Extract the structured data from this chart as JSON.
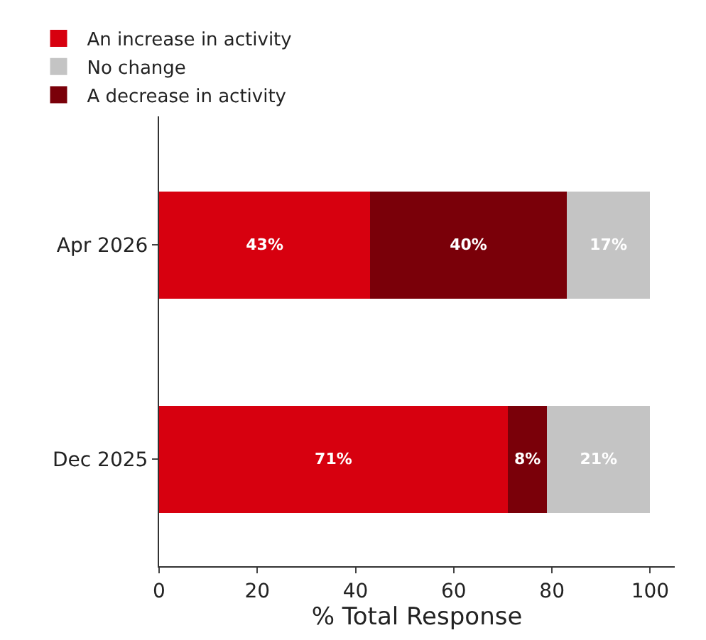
{
  "chart_data": {
    "type": "bar",
    "orientation": "horizontal",
    "stacked": true,
    "xlabel": "% Total Response",
    "categories": [
      "Apr 2026",
      "Dec 2025"
    ],
    "series": [
      {
        "name": "An increase in activity",
        "color": "#d7000f",
        "values": [
          43,
          71
        ],
        "value_labels": [
          "43%",
          "71%"
        ]
      },
      {
        "name": "A decrease in activity",
        "color": "#7a0009",
        "values": [
          40,
          8
        ],
        "value_labels": [
          "40%",
          "8%"
        ]
      },
      {
        "name": "No change",
        "color": "#c4c4c4",
        "values": [
          17,
          21
        ],
        "value_labels": [
          "17%",
          "21%"
        ]
      }
    ],
    "xlim": [
      0,
      105
    ],
    "xticks": [
      0,
      20,
      40,
      60,
      80,
      100
    ],
    "legend": "top"
  }
}
